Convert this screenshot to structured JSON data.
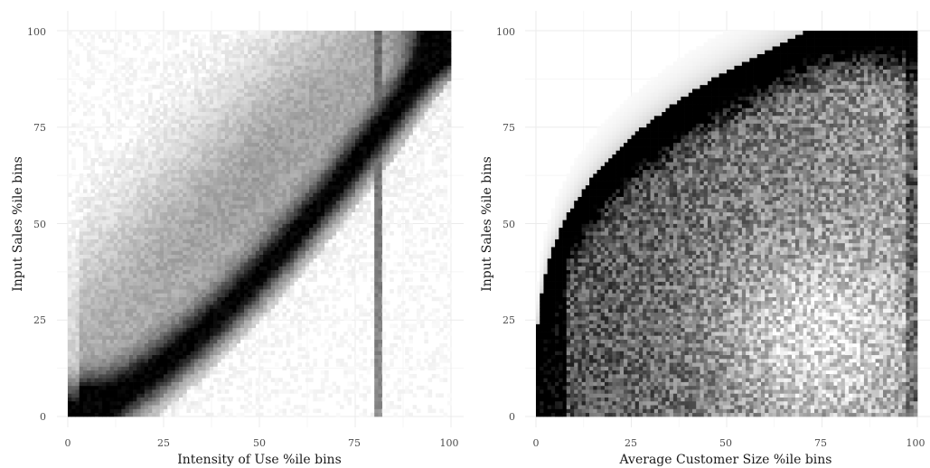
{
  "chart_data": [
    {
      "type": "heatmap",
      "title": "",
      "xlabel": "Intensity of Use %ile bins",
      "ylabel": "Input Sales %ile bins",
      "xlim": [
        0,
        100
      ],
      "ylim": [
        0,
        100
      ],
      "x_ticks": [
        "0",
        "25",
        "50",
        "75",
        "100"
      ],
      "y_ticks": [
        "0",
        "25",
        "50",
        "75",
        "100"
      ],
      "bins": 100,
      "colormap": {
        "low": "#ffffff",
        "high": "#000000"
      },
      "grid": true,
      "legend": "none",
      "pattern": "dense diagonal ridge from (0,0) to (100,100), concave band shifted right; vertical band near x=80-82"
    },
    {
      "type": "heatmap",
      "title": "",
      "xlabel": "Average Customer Size %ile bins",
      "ylabel": "Input Sales %ile bins",
      "xlim": [
        0,
        100
      ],
      "ylim": [
        0,
        100
      ],
      "x_ticks": [
        "0",
        "25",
        "50",
        "75",
        "100"
      ],
      "y_ticks": [
        "0",
        "25",
        "50",
        "75",
        "100"
      ],
      "bins": 100,
      "colormap": {
        "low": "#ffffff",
        "high": "#000000"
      },
      "grid": true,
      "legend": "none",
      "pattern": "concave frontier rising steeply from low x to top; dense band along the frontier, noisy mass below; empty region in upper-left"
    }
  ]
}
